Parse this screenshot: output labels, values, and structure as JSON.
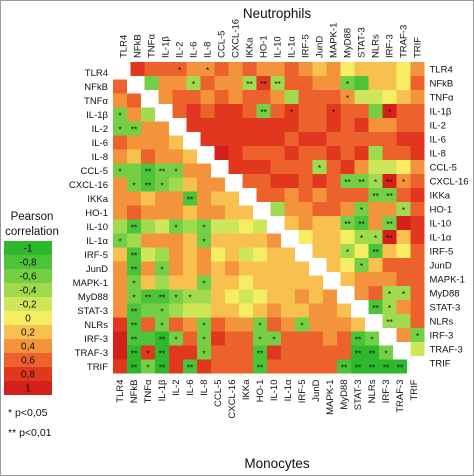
{
  "chart_data": {
    "type": "heatmap",
    "title_top": "Neutrophils",
    "title_bottom": "Monocytes",
    "legend_title": "Pearson correlation",
    "legend_placement": "left",
    "scale_min": -1,
    "scale_max": 1,
    "genes": [
      "TLR4",
      "NFkB",
      "TNFα",
      "IL-1β",
      "IL-2",
      "IL-6",
      "IL-8",
      "CCL-5",
      "CXCL-16",
      "IKKa",
      "HO-1",
      "IL-10",
      "IL-1α",
      "IRF-5",
      "JunD",
      "MAPK-1",
      "MyD88",
      "STAT-3",
      "NLRs",
      "IRF-3",
      "TRAF-3",
      "TRIF"
    ],
    "legend": [
      {
        "label": "-1",
        "color": "#2eb82e"
      },
      {
        "label": "-0,8",
        "color": "#4cc43a"
      },
      {
        "label": "-0,6",
        "color": "#74cf45"
      },
      {
        "label": "-0,4",
        "color": "#a0da4e"
      },
      {
        "label": "-0,2",
        "color": "#cfe65a"
      },
      {
        "label": "0",
        "color": "#f6ee62"
      },
      {
        "label": "0,2",
        "color": "#f8c14f"
      },
      {
        "label": "0,4",
        "color": "#f3943c"
      },
      {
        "label": "0,6",
        "color": "#ec612c"
      },
      {
        "label": "0,8",
        "color": "#e2371f"
      },
      {
        "label": "1",
        "color": "#d51f1a"
      }
    ],
    "significance_notes": [
      "* p<0,05",
      "** p<0,01"
    ],
    "upper_triangle_group": "Neutrophils",
    "lower_triangle_group": "Monocytes",
    "marks_upper": [
      [
        0,
        4,
        "*"
      ],
      [
        0,
        6,
        "*"
      ],
      [
        1,
        5,
        "*"
      ],
      [
        1,
        9,
        "**"
      ],
      [
        1,
        10,
        "**"
      ],
      [
        1,
        11,
        "**"
      ],
      [
        1,
        16,
        "*"
      ],
      [
        2,
        16,
        "*"
      ],
      [
        3,
        10,
        "**"
      ],
      [
        3,
        12,
        "*"
      ],
      [
        3,
        15,
        "*"
      ],
      [
        3,
        19,
        "*"
      ],
      [
        7,
        14,
        "*"
      ],
      [
        8,
        16,
        "**"
      ],
      [
        8,
        17,
        "**"
      ],
      [
        8,
        18,
        "*"
      ],
      [
        8,
        19,
        "**"
      ],
      [
        8,
        20,
        "*"
      ],
      [
        9,
        18,
        "**"
      ],
      [
        9,
        19,
        "**"
      ],
      [
        10,
        17,
        "*"
      ],
      [
        10,
        20,
        "*"
      ],
      [
        11,
        16,
        "**"
      ],
      [
        11,
        17,
        "**"
      ],
      [
        11,
        19,
        "**"
      ],
      [
        12,
        17,
        "*"
      ],
      [
        12,
        18,
        "*"
      ],
      [
        12,
        19,
        "**"
      ],
      [
        13,
        16,
        "*"
      ],
      [
        13,
        18,
        "**"
      ],
      [
        14,
        17,
        "*"
      ],
      [
        16,
        19,
        "*"
      ],
      [
        16,
        20,
        "*"
      ],
      [
        17,
        18,
        "**"
      ],
      [
        17,
        19,
        "*"
      ],
      [
        18,
        19,
        "**"
      ],
      [
        19,
        21,
        "*"
      ]
    ],
    "marks_lower": [
      [
        3,
        0,
        "*"
      ],
      [
        4,
        0,
        "*"
      ],
      [
        4,
        1,
        "**"
      ],
      [
        7,
        0,
        "*"
      ],
      [
        7,
        2,
        "**"
      ],
      [
        7,
        3,
        "**"
      ],
      [
        7,
        4,
        "*"
      ],
      [
        8,
        1,
        "*"
      ],
      [
        8,
        2,
        "**"
      ],
      [
        8,
        3,
        "*"
      ],
      [
        9,
        5,
        "**"
      ],
      [
        11,
        1,
        "**"
      ],
      [
        11,
        4,
        "*"
      ],
      [
        11,
        6,
        "*"
      ],
      [
        12,
        0,
        "*"
      ],
      [
        12,
        6,
        "*"
      ],
      [
        13,
        1,
        "**"
      ],
      [
        14,
        1,
        "**"
      ],
      [
        14,
        3,
        "*"
      ],
      [
        15,
        1,
        "*"
      ],
      [
        15,
        6,
        "*"
      ],
      [
        16,
        1,
        "*"
      ],
      [
        16,
        2,
        "**"
      ],
      [
        16,
        3,
        "**"
      ],
      [
        16,
        4,
        "*"
      ],
      [
        16,
        5,
        "*"
      ],
      [
        17,
        1,
        "**"
      ],
      [
        17,
        3,
        "*"
      ],
      [
        18,
        1,
        "**"
      ],
      [
        18,
        3,
        "*"
      ],
      [
        18,
        6,
        "*"
      ],
      [
        18,
        10,
        "*"
      ],
      [
        18,
        13,
        "*"
      ],
      [
        19,
        1,
        "**"
      ],
      [
        19,
        3,
        "**"
      ],
      [
        19,
        4,
        "*"
      ],
      [
        19,
        6,
        "*"
      ],
      [
        19,
        10,
        "*"
      ],
      [
        19,
        11,
        "*"
      ],
      [
        19,
        17,
        "**"
      ],
      [
        19,
        18,
        "*"
      ],
      [
        20,
        1,
        "**"
      ],
      [
        20,
        2,
        "*"
      ],
      [
        20,
        3,
        "**"
      ],
      [
        20,
        6,
        "*"
      ],
      [
        20,
        10,
        "**"
      ],
      [
        20,
        17,
        "**"
      ],
      [
        20,
        18,
        "**"
      ],
      [
        20,
        19,
        "*"
      ],
      [
        21,
        1,
        "**"
      ],
      [
        21,
        2,
        "*"
      ],
      [
        21,
        3,
        "**"
      ],
      [
        21,
        5,
        "**"
      ],
      [
        21,
        10,
        "**"
      ],
      [
        21,
        16,
        "**"
      ],
      [
        21,
        17,
        "**"
      ],
      [
        21,
        18,
        "**"
      ],
      [
        21,
        19,
        "**"
      ],
      [
        21,
        20,
        "**"
      ]
    ],
    "values_upper": [
      [
        0,
        0.7,
        0.6,
        0.6,
        0.5,
        0.4,
        0.3,
        0.6,
        0.4,
        0.5,
        0.3,
        0.3,
        0.5,
        0.4,
        0.2,
        0.3,
        -0.1,
        0.1,
        0.1,
        0.2,
        0.0,
        0.4
      ],
      [
        0,
        0,
        -0.6,
        0.4,
        0.3,
        -0.5,
        0.5,
        0.3,
        0.4,
        -0.4,
        0.7,
        -0.5,
        0.6,
        0.5,
        0.4,
        0.4,
        -0.7,
        -0.8,
        0.1,
        0.2,
        0.0,
        0.5
      ],
      [
        0,
        0,
        0,
        0.4,
        0.6,
        0.5,
        0.4,
        0.6,
        0.4,
        0.6,
        0.5,
        0.3,
        -0.4,
        0.6,
        0.6,
        0.5,
        0.4,
        -0.3,
        -0.2,
        0.0,
        0.1,
        0.3
      ],
      [
        0,
        0,
        0,
        0,
        0.6,
        0.8,
        0.6,
        0.8,
        0.8,
        0.6,
        -0.7,
        0.6,
        0.7,
        0.6,
        0.6,
        0.7,
        0.5,
        0.6,
        -0.6,
        0.9,
        0.6,
        0.6
      ],
      [
        0,
        0,
        0,
        0,
        0,
        0.7,
        0.8,
        0.8,
        0.7,
        0.8,
        0.8,
        0.8,
        0.7,
        0.6,
        0.6,
        0.7,
        0.5,
        0.7,
        0.4,
        0.3,
        0.6,
        0.6
      ],
      [
        0,
        0,
        0,
        0,
        0,
        0,
        0.7,
        0.8,
        0.7,
        0.8,
        0.7,
        0.8,
        0.6,
        0.7,
        0.7,
        0.6,
        0.6,
        0.6,
        0.5,
        0.6,
        0.7,
        0.8
      ],
      [
        0,
        0,
        0,
        0,
        0,
        0,
        0,
        0.9,
        0.7,
        0.6,
        0.6,
        0.5,
        0.7,
        0.6,
        0.6,
        0.7,
        0.6,
        0.7,
        -0.5,
        0.6,
        0.6,
        0.8
      ],
      [
        0,
        0,
        0,
        0,
        0,
        0,
        0,
        0,
        0.8,
        0.7,
        0.7,
        0.6,
        0.6,
        0.5,
        -0.5,
        0.6,
        0.7,
        0.4,
        -0.3,
        -0.2,
        0.0,
        0.3
      ],
      [
        0,
        0,
        0,
        0,
        0,
        0,
        0,
        0,
        0,
        0.6,
        0.6,
        0.8,
        0.7,
        0.5,
        0.7,
        0.6,
        -0.6,
        -0.7,
        -0.5,
        0.9,
        0.4,
        0.6
      ],
      [
        0,
        0,
        0,
        0,
        0,
        0,
        0,
        0,
        0,
        0,
        0.6,
        0.5,
        0.4,
        0.6,
        0.4,
        0.6,
        0.5,
        0.5,
        -0.6,
        -0.7,
        0.5,
        0.7
      ],
      [
        0,
        0,
        0,
        0,
        0,
        0,
        0,
        0,
        0,
        0,
        0,
        -0.4,
        0.4,
        0.3,
        0.5,
        0.5,
        0.4,
        -0.6,
        0.3,
        0.4,
        -0.4,
        0.6
      ],
      [
        0,
        0,
        0,
        0,
        0,
        0,
        0,
        0,
        0,
        0,
        0,
        0,
        0.2,
        0.3,
        0.2,
        0.2,
        -0.6,
        -0.8,
        0.4,
        -0.6,
        0.9,
        0.8
      ],
      [
        0,
        0,
        0,
        0,
        0,
        0,
        0,
        0,
        0,
        0,
        0,
        0,
        0,
        -0.1,
        0.2,
        0.1,
        0.0,
        -0.5,
        -0.5,
        0.9,
        0.1,
        0.7
      ],
      [
        0,
        0,
        0,
        0,
        0,
        0,
        0,
        0,
        0,
        0,
        0,
        0,
        0,
        0,
        0.2,
        0.1,
        -0.4,
        0.0,
        -0.8,
        0.2,
        -0.1,
        0.6
      ],
      [
        0,
        0,
        0,
        0,
        0,
        0,
        0,
        0,
        0,
        0,
        0,
        0,
        0,
        0,
        0,
        0.1,
        0.0,
        -0.6,
        0.2,
        0.5,
        0.6,
        0.6
      ],
      [
        0,
        0,
        0,
        0,
        0,
        0,
        0,
        0,
        0,
        0,
        0,
        0,
        0,
        0,
        0,
        0,
        0.2,
        0.4,
        0.3,
        0.4,
        0.5,
        0.6
      ],
      [
        0,
        0,
        0,
        0,
        0,
        0,
        0,
        0,
        0,
        0,
        0,
        0,
        0,
        0,
        0,
        0,
        0,
        0.4,
        0.5,
        -0.5,
        -0.4,
        0.5
      ],
      [
        0,
        0,
        0,
        0,
        0,
        0,
        0,
        0,
        0,
        0,
        0,
        0,
        0,
        0,
        0,
        0,
        0,
        0,
        -0.8,
        -0.5,
        0.3,
        0.6
      ],
      [
        0,
        0,
        0,
        0,
        0,
        0,
        0,
        0,
        0,
        0,
        0,
        0,
        0,
        0,
        0,
        0,
        0,
        0,
        0,
        -0.5,
        -0.4,
        0.5
      ],
      [
        0,
        0,
        0,
        0,
        0,
        0,
        0,
        0,
        0,
        0,
        0,
        0,
        0,
        0,
        0,
        0,
        0,
        0,
        0,
        0,
        0.3,
        -0.6
      ],
      [
        0,
        0,
        0,
        0,
        0,
        0,
        0,
        0,
        0,
        0,
        0,
        0,
        0,
        0,
        0,
        0,
        0,
        0,
        0,
        0,
        0,
        -0.2
      ],
      [
        0,
        0,
        0,
        0,
        0,
        0,
        0,
        0,
        0,
        0,
        0,
        0,
        0,
        0,
        0,
        0,
        0,
        0,
        0,
        0,
        0,
        0
      ]
    ],
    "values_lower": [
      [
        0
      ],
      [
        0.6
      ],
      [
        0.4,
        0.5
      ],
      [
        -0.6,
        0.4,
        -0.5
      ],
      [
        -0.6,
        -0.7,
        0.3,
        0.3
      ],
      [
        0.5,
        0.4,
        0.3,
        0.3,
        0.2
      ],
      [
        0.4,
        0.2,
        0.5,
        0.3,
        0.3,
        0.2
      ],
      [
        -0.6,
        -0.7,
        -0.8,
        -0.7,
        -0.6,
        0.3,
        0.4
      ],
      [
        0.4,
        -0.6,
        -0.8,
        -0.6,
        -0.4,
        0.2,
        0.4,
        0.3
      ],
      [
        0.3,
        0.4,
        0.2,
        0.3,
        0.4,
        -0.8,
        0.3,
        0.2,
        0.1
      ],
      [
        0.3,
        0.5,
        0.4,
        0.3,
        0.3,
        0.2,
        0.3,
        0.3,
        0.2,
        0.2
      ],
      [
        -0.5,
        -0.8,
        -0.4,
        -0.3,
        -0.6,
        -0.4,
        -0.6,
        -0.3,
        -0.2,
        0.0,
        -0.3
      ],
      [
        -0.6,
        -0.4,
        0.3,
        0.4,
        0.3,
        0.2,
        -0.6,
        0.2,
        0.2,
        0.1,
        0.2,
        0.3
      ],
      [
        0.2,
        -0.8,
        -0.3,
        -0.4,
        0.3,
        0.2,
        0.3,
        0.0,
        0.1,
        -0.2,
        0.0,
        0.2,
        0.1
      ],
      [
        0.4,
        -0.8,
        0.3,
        -0.6,
        0.3,
        0.2,
        0.3,
        0.2,
        0.3,
        0.1,
        0.2,
        0.1,
        0.2,
        0.1
      ],
      [
        0.3,
        -0.6,
        0.2,
        -0.4,
        0.2,
        0.2,
        -0.6,
        0.2,
        0.2,
        0.0,
        0.1,
        0.2,
        0.1,
        0.2,
        0.2
      ],
      [
        0.3,
        -0.7,
        -0.8,
        -0.8,
        -0.6,
        -0.5,
        -0.4,
        0.1,
        0.0,
        -0.2,
        0.0,
        0.1,
        0.2,
        0.3,
        0.2,
        0.3
      ],
      [
        0.4,
        -0.8,
        -0.6,
        -0.6,
        -0.4,
        -0.3,
        -0.2,
        0.2,
        0.1,
        0.0,
        0.2,
        0.3,
        0.1,
        0.2,
        0.3,
        0.3,
        0.2
      ],
      [
        0.7,
        -0.8,
        0.6,
        -0.6,
        0.5,
        0.4,
        -0.6,
        0.5,
        0.3,
        0.3,
        -0.6,
        0.5,
        0.4,
        -0.6,
        0.3,
        0.4,
        0.3,
        0.2
      ],
      [
        0.9,
        -0.8,
        -0.8,
        -0.9,
        -0.6,
        0.6,
        -0.7,
        0.7,
        0.6,
        0.5,
        -0.6,
        -0.7,
        0.6,
        0.5,
        0.6,
        0.4,
        0.5,
        -0.8,
        -0.7
      ],
      [
        0.9,
        -0.9,
        0.8,
        -0.9,
        0.7,
        0.7,
        -0.7,
        0.6,
        0.6,
        0.6,
        -0.8,
        0.7,
        0.6,
        0.6,
        0.5,
        0.5,
        0.6,
        -0.9,
        -0.9,
        -0.7
      ],
      [
        0.8,
        -0.9,
        -0.7,
        -0.9,
        0.8,
        -0.8,
        0.7,
        0.6,
        0.6,
        0.5,
        -0.8,
        0.6,
        0.6,
        0.6,
        0.5,
        0.5,
        -0.8,
        -0.9,
        -0.9,
        -0.9,
        -0.9
      ]
    ]
  }
}
